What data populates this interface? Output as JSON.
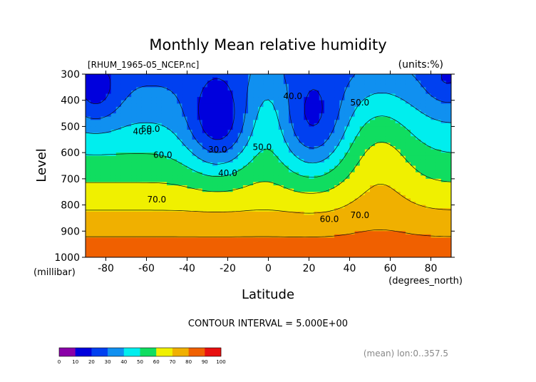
{
  "chart_data": {
    "type": "contour",
    "title": "Monthly Mean relative humidity",
    "source_label": "[RHUM_1965-05_NCEP.nc]",
    "units_label": "(units:%)",
    "xlabel": "Latitude",
    "x_units": "(degrees_north)",
    "ylabel": "Level",
    "y_units": "(millibar)",
    "xlim": [
      -90,
      90
    ],
    "ylim": [
      1000,
      300
    ],
    "x_ticks": [
      -80,
      -60,
      -40,
      -20,
      0,
      20,
      40,
      60,
      80
    ],
    "y_ticks": [
      300,
      400,
      500,
      600,
      700,
      800,
      900,
      1000
    ],
    "contour_interval_text": "CONTOUR INTERVAL = 5.000E+00",
    "footer_note": "(mean) lon:0..357.5",
    "contour_labels": [
      {
        "text": "30.0",
        "x": -25,
        "y": 600
      },
      {
        "text": "40.0",
        "x": -62,
        "y": 530
      },
      {
        "text": "50.0",
        "x": -58,
        "y": 520
      },
      {
        "text": "40.0",
        "x": 12,
        "y": 395
      },
      {
        "text": "50.0",
        "x": 45,
        "y": 420
      },
      {
        "text": "50.0",
        "x": -3,
        "y": 590
      },
      {
        "text": "40.0",
        "x": -20,
        "y": 690
      },
      {
        "text": "60.0",
        "x": -52,
        "y": 620
      },
      {
        "text": "70.0",
        "x": -55,
        "y": 790
      },
      {
        "text": "60.0",
        "x": 30,
        "y": 865
      },
      {
        "text": "70.0",
        "x": 45,
        "y": 850
      }
    ],
    "colorbar": {
      "ticks": [
        "0",
        "10",
        "20",
        "30",
        "40",
        "50",
        "60",
        "70",
        "80",
        "90",
        "100"
      ],
      "colors": [
        "#8a00a8",
        "#0000dd",
        "#0040f0",
        "#1090f0",
        "#00eeee",
        "#10dd60",
        "#f0f000",
        "#f0b000",
        "#f06000",
        "#e81010"
      ]
    },
    "levels": [
      {
        "value": 0,
        "color": "#8a00a8"
      },
      {
        "value": 10,
        "color": "#0000dd"
      },
      {
        "value": 20,
        "color": "#0040f0"
      },
      {
        "value": 30,
        "color": "#1090f0"
      },
      {
        "value": 40,
        "color": "#00eeee"
      },
      {
        "value": 50,
        "color": "#10dd60"
      },
      {
        "value": 60,
        "color": "#f0f000"
      },
      {
        "value": 70,
        "color": "#f0b000"
      },
      {
        "value": 80,
        "color": "#f06000"
      },
      {
        "value": 90,
        "color": "#e81010"
      }
    ]
  }
}
